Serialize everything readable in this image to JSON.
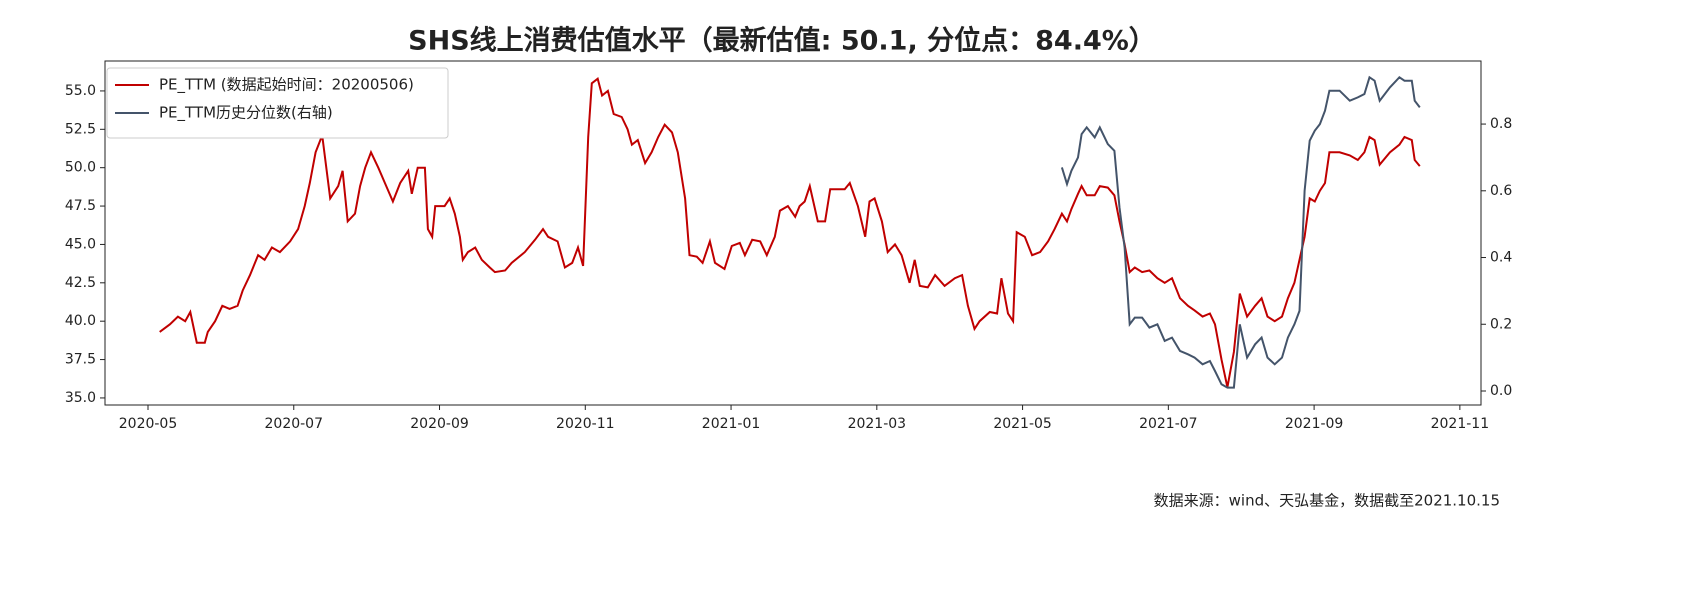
{
  "chart_data": {
    "type": "line",
    "title": "SHS线上消费估值水平（最新估值: 50.1, 分位点：84.4%）",
    "source": "数据来源：wind、天弘基金，数据截至2021.10.15",
    "legend": "upper left",
    "xlim": [
      -0.59,
      18.29
    ],
    "xticks": [
      {
        "value": 0,
        "label": "2020-05"
      },
      {
        "value": 2,
        "label": "2020-07"
      },
      {
        "value": 4,
        "label": "2020-09"
      },
      {
        "value": 6,
        "label": "2020-11"
      },
      {
        "value": 8,
        "label": "2021-01"
      },
      {
        "value": 10,
        "label": "2021-03"
      },
      {
        "value": 12,
        "label": "2021-05"
      },
      {
        "value": 14,
        "label": "2021-07"
      },
      {
        "value": 16,
        "label": "2021-09"
      },
      {
        "value": 18,
        "label": "2021-11"
      }
    ],
    "ylim": [
      34.54,
      56.95
    ],
    "yticks": [
      {
        "value": 35,
        "label": "35.0"
      },
      37.5,
      {
        "value": 40,
        "label": "40.0"
      },
      42.5,
      {
        "value": 45,
        "label": "45.0"
      },
      47.5,
      {
        "value": 50,
        "label": "50.0"
      },
      52.5,
      {
        "value": 55,
        "label": "55.0"
      }
    ],
    "y2lim": [
      -0.042,
      0.989
    ],
    "y2ticks": [
      {
        "value": 0,
        "label": "0.0"
      },
      0.2,
      0.4,
      0.6,
      0.8
    ],
    "x": [
      0.16,
      0.3,
      0.41,
      0.51,
      0.58,
      0.67,
      0.78,
      0.82,
      0.92,
      1.02,
      1.12,
      1.23,
      1.3,
      1.4,
      1.51,
      1.6,
      1.7,
      1.81,
      1.95,
      2.06,
      2.15,
      2.22,
      2.3,
      2.39,
      2.5,
      2.61,
      2.67,
      2.74,
      2.84,
      2.91,
      2.98,
      3.06,
      3.16,
      3.25,
      3.36,
      3.46,
      3.57,
      3.62,
      3.7,
      3.8,
      3.84,
      3.9,
      3.94,
      4.07,
      4.14,
      4.21,
      4.28,
      4.32,
      4.39,
      4.49,
      4.58,
      4.69,
      4.76,
      4.9,
      4.99,
      5.17,
      5.31,
      5.42,
      5.49,
      5.62,
      5.72,
      5.82,
      5.9,
      5.97,
      6.04,
      6.09,
      6.17,
      6.23,
      6.31,
      6.39,
      6.5,
      6.58,
      6.64,
      6.72,
      6.82,
      6.91,
      7.0,
      7.09,
      7.19,
      7.27,
      7.37,
      7.43,
      7.53,
      7.61,
      7.71,
      7.78,
      7.91,
      8.01,
      8.12,
      8.19,
      8.29,
      8.4,
      8.49,
      8.6,
      8.67,
      8.78,
      8.88,
      8.94,
      9.01,
      9.08,
      9.19,
      9.29,
      9.36,
      9.56,
      9.63,
      9.74,
      9.84,
      9.9,
      9.97,
      10.07,
      10.15,
      10.25,
      10.34,
      10.45,
      10.52,
      10.59,
      10.7,
      10.8,
      10.93,
      11.07,
      11.17,
      11.25,
      11.34,
      11.41,
      11.55,
      11.65,
      11.71,
      11.8,
      11.87,
      11.92,
      12.03,
      12.13,
      12.24,
      12.35,
      12.44,
      12.54,
      12.61,
      12.67,
      12.76,
      12.81,
      12.88,
      12.99,
      13.06,
      13.17,
      13.26,
      13.33,
      13.4,
      13.47,
      13.54,
      13.64,
      13.74,
      13.85,
      13.95,
      14.05,
      14.16,
      14.27,
      14.36,
      14.47,
      14.57,
      14.64,
      14.73,
      14.81,
      14.9,
      14.98,
      15.08,
      15.19,
      15.28,
      15.36,
      15.46,
      15.56,
      15.64,
      15.73,
      15.8,
      15.87,
      15.94,
      16.01,
      16.08,
      16.15,
      16.21,
      16.35,
      16.49,
      16.6,
      16.69,
      16.76,
      16.83,
      16.9,
      17.04,
      17.17,
      17.24,
      17.34,
      17.38,
      17.45
    ],
    "series": [
      {
        "name": "PE_TTM (数据起始时间：20200506)",
        "color": "#c00000",
        "values": [
          39.3,
          39.8,
          40.3,
          40.0,
          40.6,
          38.6,
          38.6,
          39.3,
          40.0,
          41.0,
          40.8,
          41.0,
          42.0,
          43.0,
          44.3,
          44.0,
          44.8,
          44.5,
          45.2,
          46.0,
          47.5,
          49.0,
          51.0,
          52.1,
          48.0,
          48.8,
          49.8,
          46.5,
          47.0,
          48.8,
          50.0,
          51.0,
          50.0,
          49.0,
          47.8,
          49.0,
          49.8,
          48.3,
          50.0,
          50.0,
          46.0,
          45.5,
          47.5,
          47.5,
          48.0,
          47.0,
          45.5,
          44.0,
          44.5,
          44.8,
          44.0,
          43.5,
          43.2,
          43.3,
          43.8,
          44.5,
          45.3,
          46.0,
          45.5,
          45.2,
          43.5,
          43.8,
          44.8,
          43.6,
          52.0,
          55.5,
          55.8,
          54.7,
          55.0,
          53.5,
          53.3,
          52.5,
          51.5,
          51.8,
          50.3,
          51.0,
          52.0,
          52.8,
          52.3,
          51.0,
          48.0,
          44.3,
          44.2,
          43.8,
          45.2,
          43.8,
          43.4,
          44.9,
          45.1,
          44.3,
          45.3,
          45.2,
          44.3,
          45.5,
          47.2,
          47.5,
          46.8,
          47.5,
          47.8,
          48.8,
          46.5,
          46.5,
          48.6,
          48.6,
          49.0,
          47.5,
          45.5,
          47.8,
          48.0,
          46.5,
          44.5,
          45.0,
          44.3,
          42.5,
          44.0,
          42.3,
          42.2,
          43.0,
          42.3,
          42.8,
          43.0,
          41.0,
          39.5,
          40.0,
          40.6,
          40.5,
          42.8,
          40.5,
          40.0,
          45.8,
          45.5,
          44.3,
          44.5,
          45.2,
          46.0,
          47.0,
          46.5,
          47.3,
          48.3,
          48.8,
          48.2,
          48.2,
          48.8,
          48.7,
          48.2,
          46.5,
          45.0,
          43.2,
          43.5,
          43.2,
          43.3,
          42.8,
          42.5,
          42.8,
          41.5,
          41.0,
          40.7,
          40.3,
          40.5,
          39.8,
          37.5,
          35.7,
          38.0,
          41.8,
          40.3,
          41.0,
          41.5,
          40.3,
          40.0,
          40.3,
          41.5,
          42.5,
          44.0,
          45.5,
          48.0,
          47.8,
          48.5,
          49.0,
          51.0,
          51.0,
          50.8,
          50.5,
          51.0,
          52.0,
          51.8,
          50.2,
          51.0,
          51.5,
          52.0,
          51.8,
          50.5,
          50.1
        ]
      },
      {
        "name": "PE_TTM历史分位数(右轴)",
        "color": "#44546a",
        "axis": "y2",
        "values": [
          null,
          null,
          null,
          null,
          null,
          null,
          null,
          null,
          null,
          null,
          null,
          null,
          null,
          null,
          null,
          null,
          null,
          null,
          null,
          null,
          null,
          null,
          null,
          null,
          null,
          null,
          null,
          null,
          null,
          null,
          null,
          null,
          null,
          null,
          null,
          null,
          null,
          null,
          null,
          null,
          null,
          null,
          null,
          null,
          null,
          null,
          null,
          null,
          null,
          null,
          null,
          null,
          null,
          null,
          null,
          null,
          null,
          null,
          null,
          null,
          null,
          null,
          null,
          null,
          null,
          null,
          null,
          null,
          null,
          null,
          null,
          null,
          null,
          null,
          null,
          null,
          null,
          null,
          null,
          null,
          null,
          null,
          null,
          null,
          null,
          null,
          null,
          null,
          null,
          null,
          null,
          null,
          null,
          null,
          null,
          null,
          null,
          null,
          null,
          null,
          null,
          null,
          null,
          null,
          null,
          null,
          null,
          null,
          null,
          null,
          null,
          null,
          null,
          null,
          null,
          null,
          null,
          null,
          null,
          null,
          null,
          null,
          null,
          null,
          null,
          null,
          null,
          null,
          null,
          null,
          null,
          null,
          null,
          null,
          null,
          0.67,
          0.62,
          0.66,
          0.7,
          0.77,
          0.79,
          0.76,
          0.79,
          0.74,
          0.72,
          0.55,
          0.43,
          0.2,
          0.22,
          0.22,
          0.19,
          0.2,
          0.15,
          0.16,
          0.12,
          0.11,
          0.1,
          0.08,
          0.09,
          0.06,
          0.02,
          0.01,
          0.01,
          0.2,
          0.1,
          0.14,
          0.16,
          0.1,
          0.08,
          0.1,
          0.16,
          0.2,
          0.24,
          0.6,
          0.75,
          0.78,
          0.8,
          0.84,
          0.9,
          0.9,
          0.87,
          0.88,
          0.89,
          0.94,
          0.93,
          0.87,
          0.91,
          0.94,
          0.93,
          0.93,
          0.87,
          0.85
        ]
      }
    ]
  }
}
